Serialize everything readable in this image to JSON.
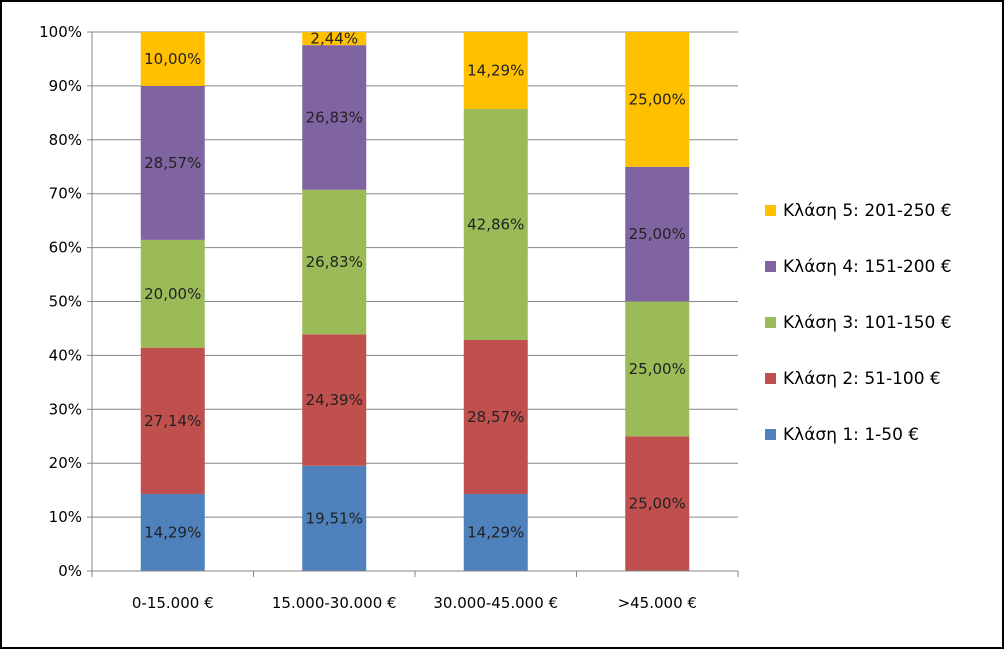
{
  "chart_data": {
    "type": "bar",
    "stacked": true,
    "percent": true,
    "categories": [
      "0-15.000 €",
      "15.000-30.000 €",
      "30.000-45.000 €",
      ">45.000 €"
    ],
    "series": [
      {
        "name": "Κλάση 1: 1-50 €",
        "color": "#4f81bd",
        "values": [
          14.29,
          19.51,
          14.29,
          0
        ],
        "labels": [
          "14,29%",
          "19,51%",
          "14,29%",
          ""
        ]
      },
      {
        "name": "Κλάση 2: 51-100 €",
        "color": "#c0504d",
        "values": [
          27.14,
          24.39,
          28.57,
          25.0
        ],
        "labels": [
          "27,14%",
          "24,39%",
          "28,57%",
          "25,00%"
        ]
      },
      {
        "name": "Κλάση 3: 101-150 €",
        "color": "#9bbb59",
        "values": [
          20.0,
          26.83,
          42.86,
          25.0
        ],
        "labels": [
          "20,00%",
          "26,83%",
          "42,86%",
          "25,00%"
        ]
      },
      {
        "name": "Κλάση 4: 151-200 €",
        "color": "#8064a2",
        "values": [
          28.57,
          26.83,
          0,
          25.0
        ],
        "labels": [
          "28,57%",
          "26,83%",
          "",
          "25,00%"
        ]
      },
      {
        "name": "Κλάση 5: 201-250 €",
        "color": "#ffc000",
        "values": [
          10.0,
          2.44,
          14.29,
          25.0
        ],
        "labels": [
          "10,00%",
          "2,44%",
          "14,29%",
          "25,00%"
        ]
      }
    ],
    "yticks": [
      "0%",
      "10%",
      "20%",
      "30%",
      "40%",
      "50%",
      "60%",
      "70%",
      "80%",
      "90%",
      "100%"
    ],
    "ylim": [
      0,
      100
    ],
    "legend": "right",
    "grid": true,
    "gridColor": "#868686"
  }
}
